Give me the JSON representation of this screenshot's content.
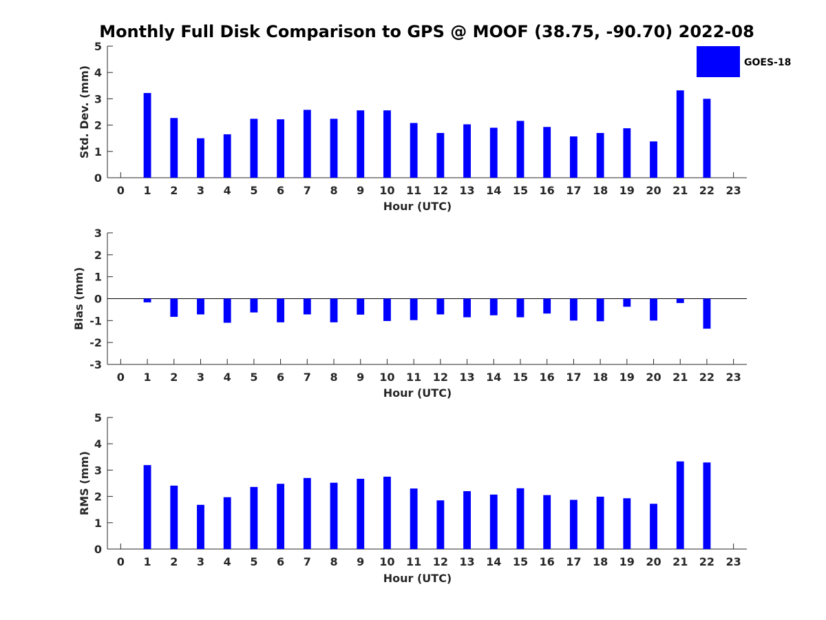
{
  "title": "Monthly Full Disk Comparison to GPS @ MOOF (38.75, -90.70) 2022-08",
  "legend": {
    "label": "GOES-18",
    "color": "#0000ff"
  },
  "chart_data": [
    {
      "type": "bar",
      "id": "std",
      "title": "",
      "xlabel": "Hour (UTC)",
      "ylabel": "Std. Dev. (mm)",
      "xlim": [
        -0.5,
        23.5
      ],
      "ylim": [
        0,
        5
      ],
      "yticks": [
        0,
        1,
        2,
        3,
        4,
        5
      ],
      "xticks": [
        0,
        1,
        2,
        3,
        4,
        5,
        6,
        7,
        8,
        9,
        10,
        11,
        12,
        13,
        14,
        15,
        16,
        17,
        18,
        19,
        20,
        21,
        22,
        23
      ],
      "series": [
        {
          "name": "GOES-18",
          "x": [
            1,
            2,
            3,
            4,
            5,
            6,
            7,
            8,
            9,
            10,
            11,
            12,
            13,
            14,
            15,
            16,
            17,
            18,
            19,
            20,
            21,
            22
          ],
          "values": [
            3.22,
            2.27,
            1.5,
            1.65,
            2.24,
            2.22,
            2.58,
            2.24,
            2.56,
            2.56,
            2.08,
            1.7,
            2.03,
            1.9,
            2.16,
            1.93,
            1.57,
            1.7,
            1.88,
            1.38,
            3.32,
            3.0
          ]
        }
      ]
    },
    {
      "type": "bar",
      "id": "bias",
      "title": "",
      "xlabel": "Hour (UTC)",
      "ylabel": "Bias (mm)",
      "xlim": [
        -0.5,
        23.5
      ],
      "ylim": [
        -3,
        3
      ],
      "yticks": [
        -3,
        -2,
        -1,
        0,
        1,
        2,
        3
      ],
      "xticks": [
        0,
        1,
        2,
        3,
        4,
        5,
        6,
        7,
        8,
        9,
        10,
        11,
        12,
        13,
        14,
        15,
        16,
        17,
        18,
        19,
        20,
        21,
        22,
        23
      ],
      "zero_line": true,
      "series": [
        {
          "name": "GOES-18",
          "x": [
            1,
            2,
            3,
            4,
            5,
            6,
            7,
            8,
            9,
            10,
            11,
            12,
            13,
            14,
            15,
            16,
            17,
            18,
            19,
            20,
            21,
            22
          ],
          "values": [
            -0.17,
            -0.83,
            -0.72,
            -1.1,
            -0.63,
            -1.08,
            -0.72,
            -1.08,
            -0.73,
            -1.02,
            -0.98,
            -0.72,
            -0.85,
            -0.76,
            -0.85,
            -0.68,
            -1.0,
            -1.03,
            -0.37,
            -1.0,
            -0.2,
            -1.37
          ]
        }
      ]
    },
    {
      "type": "bar",
      "id": "rms",
      "title": "",
      "xlabel": "Hour (UTC)",
      "ylabel": "RMS (mm)",
      "xlim": [
        -0.5,
        23.5
      ],
      "ylim": [
        0,
        5
      ],
      "yticks": [
        0,
        1,
        2,
        3,
        4,
        5
      ],
      "xticks": [
        0,
        1,
        2,
        3,
        4,
        5,
        6,
        7,
        8,
        9,
        10,
        11,
        12,
        13,
        14,
        15,
        16,
        17,
        18,
        19,
        20,
        21,
        22,
        23
      ],
      "series": [
        {
          "name": "GOES-18",
          "x": [
            1,
            2,
            3,
            4,
            5,
            6,
            7,
            8,
            9,
            10,
            11,
            12,
            13,
            14,
            15,
            16,
            17,
            18,
            19,
            20,
            21,
            22
          ],
          "values": [
            3.19,
            2.41,
            1.68,
            1.97,
            2.36,
            2.48,
            2.7,
            2.52,
            2.67,
            2.75,
            2.3,
            1.85,
            2.2,
            2.07,
            2.31,
            2.05,
            1.87,
            1.99,
            1.93,
            1.72,
            3.33,
            3.29
          ]
        }
      ]
    }
  ]
}
